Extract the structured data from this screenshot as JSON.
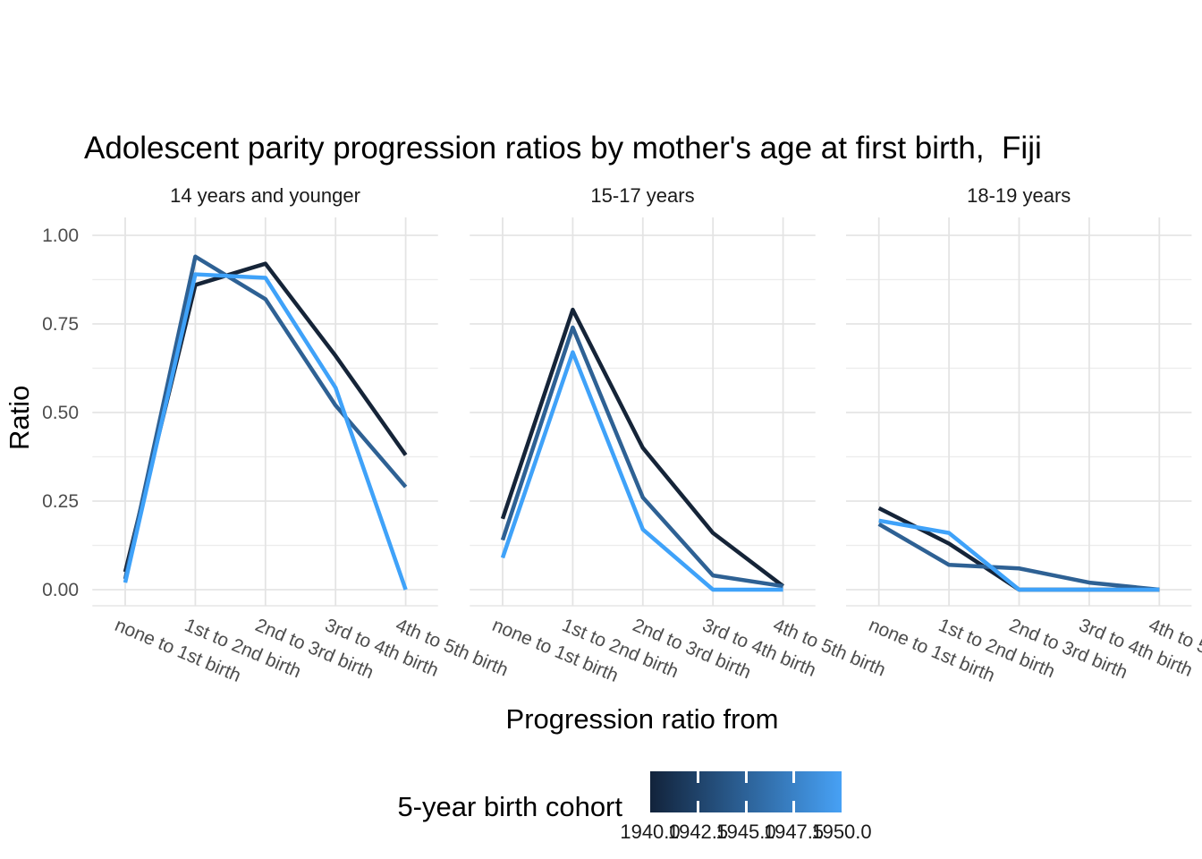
{
  "chart_data": {
    "type": "line",
    "title": "Adolescent parity progression ratios by mother's age at first birth,  Fiji",
    "xlabel": "Progression ratio from",
    "ylabel": "Ratio",
    "ylim": [
      0,
      1
    ],
    "grid": true,
    "y_tick_labels": [
      "0.00",
      "0.25",
      "0.50",
      "0.75",
      "1.00"
    ],
    "y_major_ticks": [
      0,
      0.25,
      0.5,
      0.75,
      1.0
    ],
    "y_minor_ticks": [
      0.125,
      0.375,
      0.625,
      0.875
    ],
    "categories": [
      "none to 1st birth",
      "1st to 2nd birth",
      "2nd to 3rd birth",
      "3rd to 4th birth",
      "4th to 5th birth"
    ],
    "facets": [
      {
        "label": "14 years and younger",
        "series": [
          {
            "name": "1940",
            "values": [
              0.05,
              0.86,
              0.92,
              0.66,
              0.38
            ]
          },
          {
            "name": "1945",
            "values": [
              0.03,
              0.94,
              0.82,
              0.52,
              0.29
            ]
          },
          {
            "name": "1950",
            "values": [
              0.02,
              0.89,
              0.88,
              0.57,
              0.0
            ]
          }
        ]
      },
      {
        "label": "15-17 years",
        "series": [
          {
            "name": "1940",
            "values": [
              0.2,
              0.79,
              0.4,
              0.16,
              0.01
            ]
          },
          {
            "name": "1945",
            "values": [
              0.14,
              0.74,
              0.26,
              0.04,
              0.01
            ]
          },
          {
            "name": "1950",
            "values": [
              0.09,
              0.67,
              0.17,
              0.0,
              0.0
            ]
          }
        ]
      },
      {
        "label": "18-19 years",
        "series": [
          {
            "name": "1940",
            "values": [
              0.23,
              0.13,
              0.0,
              0.0,
              0.0
            ]
          },
          {
            "name": "1945",
            "values": [
              0.185,
              0.07,
              0.06,
              0.02,
              0.0
            ]
          },
          {
            "name": "1950",
            "values": [
              0.195,
              0.16,
              0.0,
              0.0,
              0.0
            ]
          }
        ]
      }
    ],
    "series_colors": {
      "1940": "#152438",
      "1945": "#2E6194",
      "1950": "#3FA2F9"
    },
    "legend": {
      "title": "5-year birth cohort",
      "type": "colorbar",
      "position": "bottom",
      "min": 1940.0,
      "max": 1950.0,
      "tick_labels": [
        "1940.0",
        "1942.5",
        "1945.0",
        "1947.5",
        "1950.0"
      ],
      "gradient_start": "#12233B",
      "gradient_end": "#47A1F5"
    }
  }
}
